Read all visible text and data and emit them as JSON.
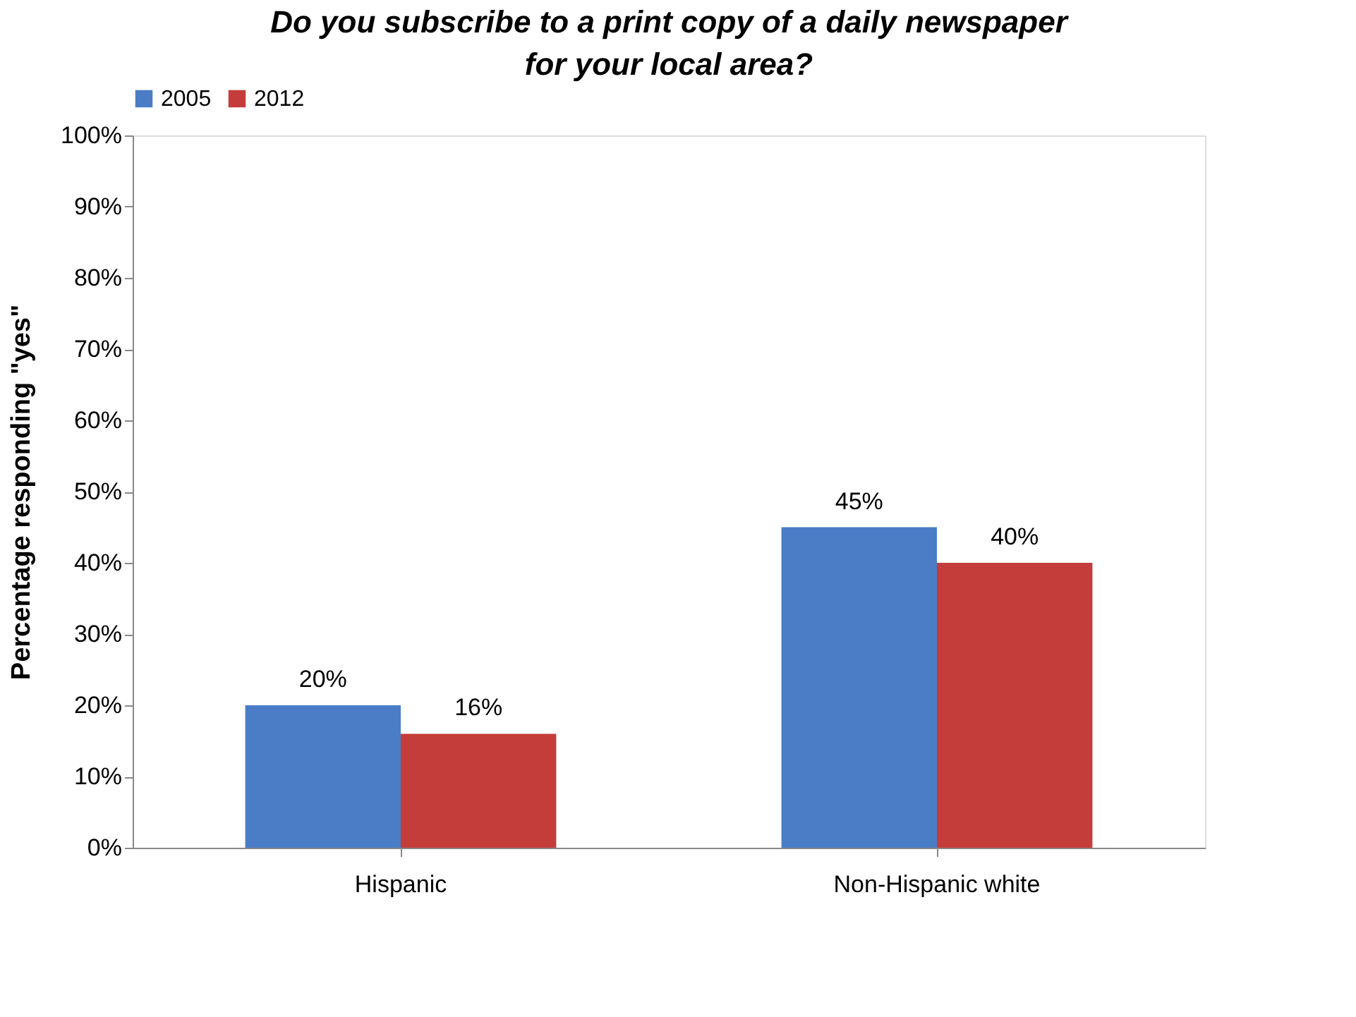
{
  "chart_data": {
    "type": "bar",
    "title": "Do you subscribe to a print copy of a daily newspaper for your local area?",
    "ylabel": "Percentage responding \"yes\"",
    "categories": [
      "Hispanic",
      "Non-Hispanic white"
    ],
    "series": [
      {
        "name": "2005",
        "color": "#4a7dc6",
        "values": [
          20,
          45
        ],
        "value_labels": [
          "20%",
          "45%"
        ]
      },
      {
        "name": "2012",
        "color": "#c43d3a",
        "values": [
          16,
          40
        ],
        "value_labels": [
          "16%",
          "40%"
        ]
      }
    ],
    "ylim": [
      0,
      100
    ],
    "yticks": [
      {
        "value": 0,
        "label": "0%"
      },
      {
        "value": 10,
        "label": "10%"
      },
      {
        "value": 20,
        "label": "20%"
      },
      {
        "value": 30,
        "label": "30%"
      },
      {
        "value": 40,
        "label": "40%"
      },
      {
        "value": 50,
        "label": "50%"
      },
      {
        "value": 60,
        "label": "60%"
      },
      {
        "value": 70,
        "label": "70%"
      },
      {
        "value": 80,
        "label": "80%"
      },
      {
        "value": 90,
        "label": "90%"
      },
      {
        "value": 100,
        "label": "100%"
      }
    ],
    "grid": false,
    "legend": "top"
  }
}
